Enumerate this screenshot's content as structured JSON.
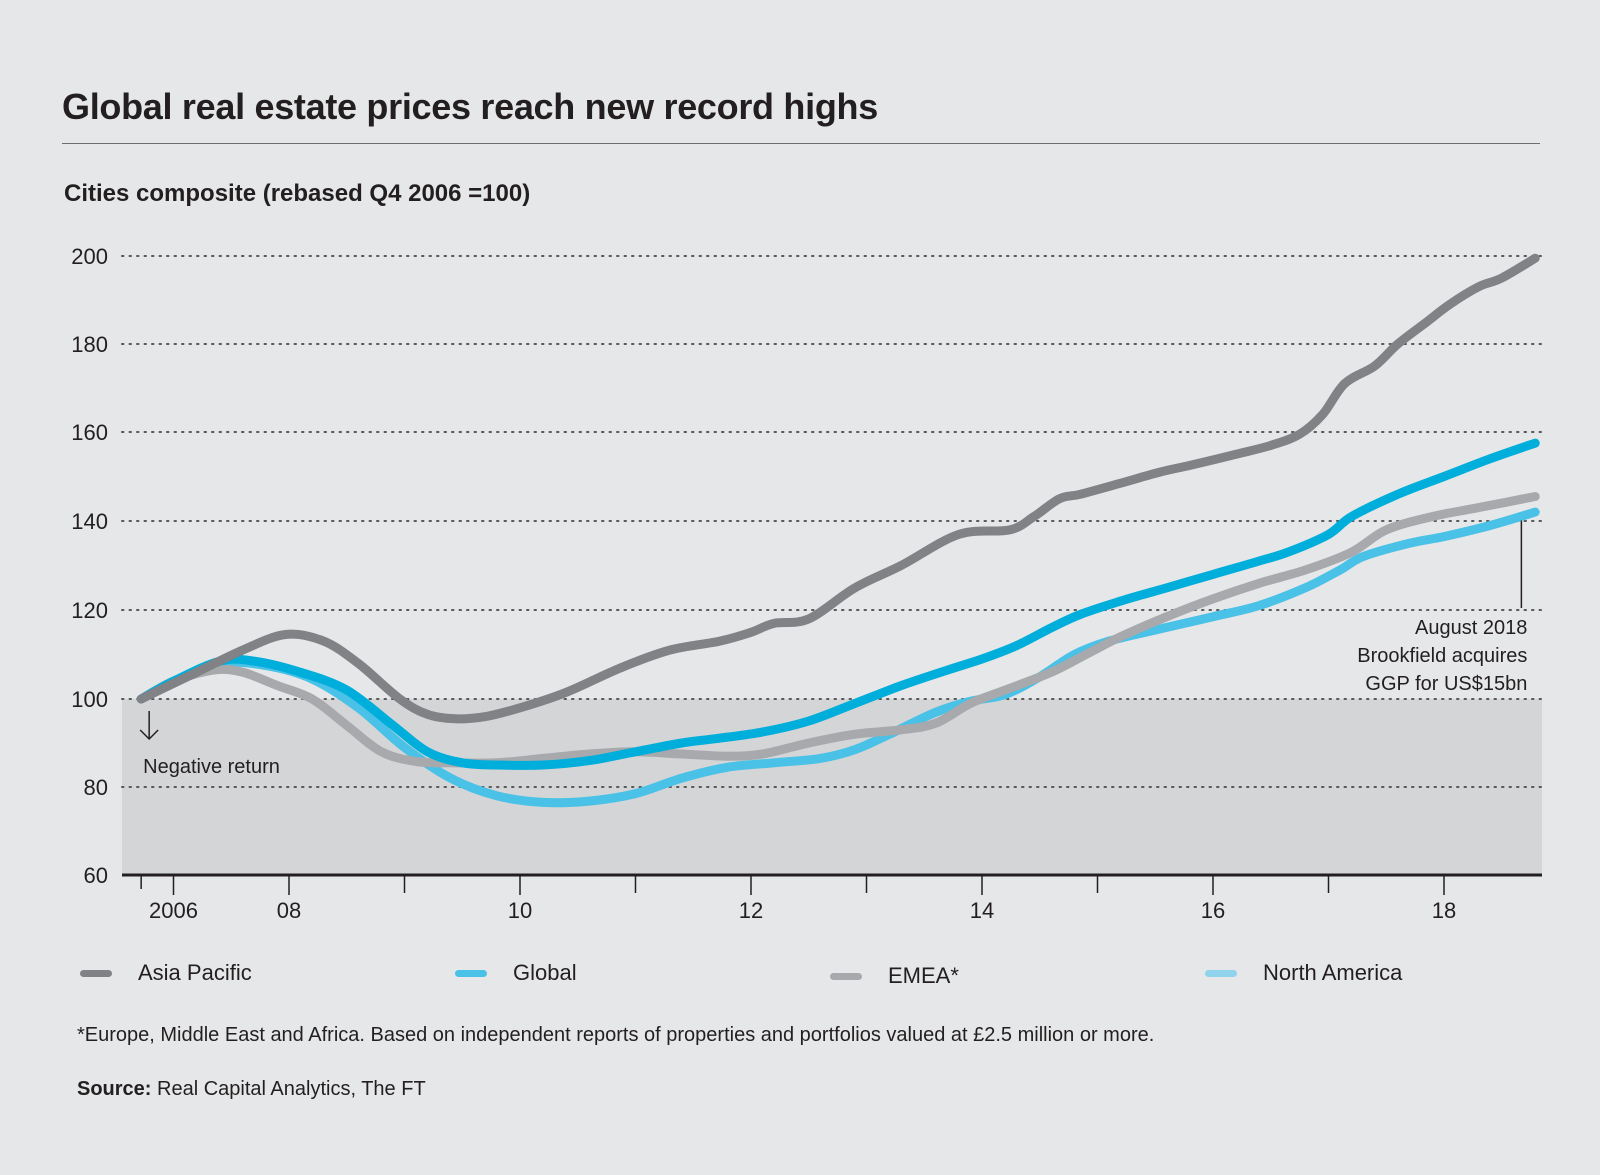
{
  "header": {
    "title": "Global real estate prices reach new record highs",
    "subtitle": "Cities composite (rebased Q4 2006 =100)"
  },
  "chart_data": {
    "type": "line",
    "title": "Global real estate prices reach new record highs",
    "subtitle": "Cities composite (rebased Q4 2006 =100)",
    "xlabel": "",
    "ylabel": "",
    "ylim": [
      60,
      200
    ],
    "xlim": [
      2006.5,
      2019.4
    ],
    "y_ticks": [
      200,
      180,
      160,
      140,
      120,
      100,
      80,
      60
    ],
    "x_ticks": [
      {
        "label": "2006",
        "x": 2007.0
      },
      {
        "label": "",
        "x": 2006.72
      },
      {
        "label": "08",
        "x": 2008.0
      },
      {
        "label": "",
        "x": 2009.0
      },
      {
        "label": "10",
        "x": 2010.0
      },
      {
        "label": "",
        "x": 2011.0
      },
      {
        "label": "12",
        "x": 2012.0
      },
      {
        "label": "",
        "x": 2013.0
      },
      {
        "label": "14",
        "x": 2014.0
      },
      {
        "label": "",
        "x": 2015.0
      },
      {
        "label": "16",
        "x": 2016.0
      },
      {
        "label": "",
        "x": 2017.0
      },
      {
        "label": "18",
        "x": 2018.0
      }
    ],
    "grid": true,
    "shaded_region": {
      "from": 60,
      "to": 100,
      "label": "Negative return",
      "color": "#d4d5d7"
    },
    "legend_position": "bottom",
    "series": [
      {
        "name": "Asia Pacific",
        "color": "#808285",
        "points": [
          [
            2006.72,
            100
          ],
          [
            2007.2,
            106
          ],
          [
            2007.6,
            111
          ],
          [
            2007.97,
            114.5
          ],
          [
            2008.3,
            113
          ],
          [
            2008.6,
            108
          ],
          [
            2008.96,
            100
          ],
          [
            2009.2,
            96.5
          ],
          [
            2009.44,
            95.5
          ],
          [
            2009.7,
            96
          ],
          [
            2010.0,
            98
          ],
          [
            2010.4,
            101.5
          ],
          [
            2010.87,
            107
          ],
          [
            2011.3,
            111
          ],
          [
            2011.73,
            113
          ],
          [
            2012.0,
            115
          ],
          [
            2012.2,
            117
          ],
          [
            2012.5,
            118
          ],
          [
            2012.9,
            125
          ],
          [
            2013.3,
            130
          ],
          [
            2013.8,
            137
          ],
          [
            2014.24,
            138
          ],
          [
            2014.45,
            141
          ],
          [
            2014.67,
            145
          ],
          [
            2014.85,
            146
          ],
          [
            2015.2,
            148.5
          ],
          [
            2015.54,
            151
          ],
          [
            2015.8,
            152.5
          ],
          [
            2016.2,
            155
          ],
          [
            2016.5,
            157
          ],
          [
            2016.75,
            159.5
          ],
          [
            2016.95,
            164
          ],
          [
            2017.14,
            171
          ],
          [
            2017.4,
            175
          ],
          [
            2017.6,
            180
          ],
          [
            2017.85,
            185
          ],
          [
            2018.05,
            189
          ],
          [
            2018.3,
            193
          ],
          [
            2018.5,
            195
          ],
          [
            2018.79,
            199.5
          ]
        ]
      },
      {
        "name": "Global",
        "color": "#00aedb",
        "points": [
          [
            2006.72,
            100
          ],
          [
            2007.0,
            104
          ],
          [
            2007.4,
            108.5
          ],
          [
            2007.7,
            108.5
          ],
          [
            2008.1,
            106
          ],
          [
            2008.5,
            102
          ],
          [
            2008.9,
            94
          ],
          [
            2009.2,
            88
          ],
          [
            2009.5,
            85.5
          ],
          [
            2009.8,
            85
          ],
          [
            2010.2,
            85
          ],
          [
            2010.6,
            86
          ],
          [
            2011.0,
            88
          ],
          [
            2011.4,
            90
          ],
          [
            2011.7,
            91
          ],
          [
            2012.1,
            92.5
          ],
          [
            2012.5,
            95
          ],
          [
            2012.9,
            99
          ],
          [
            2013.3,
            103
          ],
          [
            2013.7,
            106.5
          ],
          [
            2014.0,
            109
          ],
          [
            2014.3,
            112
          ],
          [
            2014.6,
            116
          ],
          [
            2014.85,
            119
          ],
          [
            2015.2,
            122
          ],
          [
            2015.6,
            125
          ],
          [
            2016.0,
            128
          ],
          [
            2016.4,
            131
          ],
          [
            2016.65,
            133
          ],
          [
            2017.0,
            137
          ],
          [
            2017.2,
            141
          ],
          [
            2017.6,
            146
          ],
          [
            2018.0,
            150
          ],
          [
            2018.4,
            154
          ],
          [
            2018.79,
            157.5
          ]
        ]
      },
      {
        "name": "EMEA*",
        "color": "#a7a9ac",
        "points": [
          [
            2006.72,
            100
          ],
          [
            2007.0,
            104
          ],
          [
            2007.35,
            106.5
          ],
          [
            2007.6,
            106
          ],
          [
            2007.9,
            103
          ],
          [
            2008.2,
            100
          ],
          [
            2008.5,
            94
          ],
          [
            2008.8,
            88
          ],
          [
            2009.1,
            85.8
          ],
          [
            2009.4,
            85.5
          ],
          [
            2009.8,
            85.5
          ],
          [
            2010.2,
            86.5
          ],
          [
            2010.6,
            87.5
          ],
          [
            2011.0,
            88
          ],
          [
            2011.4,
            87.5
          ],
          [
            2011.8,
            87
          ],
          [
            2012.1,
            87.5
          ],
          [
            2012.5,
            90
          ],
          [
            2012.9,
            92
          ],
          [
            2013.3,
            93
          ],
          [
            2013.6,
            94.5
          ],
          [
            2013.9,
            99
          ],
          [
            2014.2,
            102
          ],
          [
            2014.6,
            106
          ],
          [
            2014.9,
            110
          ],
          [
            2015.2,
            114
          ],
          [
            2015.6,
            118.5
          ],
          [
            2016.0,
            122.5
          ],
          [
            2016.4,
            126
          ],
          [
            2016.8,
            129
          ],
          [
            2017.2,
            133
          ],
          [
            2017.5,
            138
          ],
          [
            2017.9,
            141
          ],
          [
            2018.3,
            143
          ],
          [
            2018.79,
            145.5
          ]
        ]
      },
      {
        "name": "North America",
        "color": "#4ac1e6",
        "points": [
          [
            2006.72,
            100
          ],
          [
            2007.0,
            104
          ],
          [
            2007.4,
            108
          ],
          [
            2007.8,
            107.5
          ],
          [
            2008.2,
            104.5
          ],
          [
            2008.6,
            98
          ],
          [
            2009.0,
            89
          ],
          [
            2009.4,
            82
          ],
          [
            2009.8,
            78
          ],
          [
            2010.2,
            76.5
          ],
          [
            2010.6,
            76.8
          ],
          [
            2011.0,
            78.5
          ],
          [
            2011.4,
            82
          ],
          [
            2011.8,
            84.5
          ],
          [
            2012.2,
            85.5
          ],
          [
            2012.6,
            86.5
          ],
          [
            2012.9,
            88.5
          ],
          [
            2013.2,
            92
          ],
          [
            2013.6,
            97
          ],
          [
            2013.9,
            99.5
          ],
          [
            2014.2,
            101
          ],
          [
            2014.5,
            105
          ],
          [
            2014.8,
            110
          ],
          [
            2015.1,
            113
          ],
          [
            2015.5,
            115.5
          ],
          [
            2016.0,
            118.5
          ],
          [
            2016.4,
            121
          ],
          [
            2016.8,
            125
          ],
          [
            2017.1,
            129
          ],
          [
            2017.3,
            132
          ],
          [
            2017.7,
            135
          ],
          [
            2018.0,
            136.5
          ],
          [
            2018.4,
            139
          ],
          [
            2018.79,
            142
          ]
        ]
      }
    ],
    "annotations": [
      {
        "text": "Negative return",
        "x": 2006.72,
        "y": 100,
        "icon": "down-arrow"
      },
      {
        "lines": [
          "August 2018",
          "Brookfield acquires",
          "GGP for US$15bn"
        ],
        "x": 2018.67,
        "y": 141
      }
    ]
  },
  "legend": [
    {
      "label": "Asia Pacific",
      "color": "#808285"
    },
    {
      "label": "Global",
      "color": "#00aedb"
    },
    {
      "label": "EMEA*",
      "color": "#a7a9ac"
    },
    {
      "label": "North America",
      "color": "#8fd3ec"
    }
  ],
  "footnote": "*Europe, Middle East and Africa. Based on independent reports of properties and portfolios valued at £2.5 million or more.",
  "source": {
    "label": "Source:",
    "text": " Real Capital Analytics, The FT"
  }
}
